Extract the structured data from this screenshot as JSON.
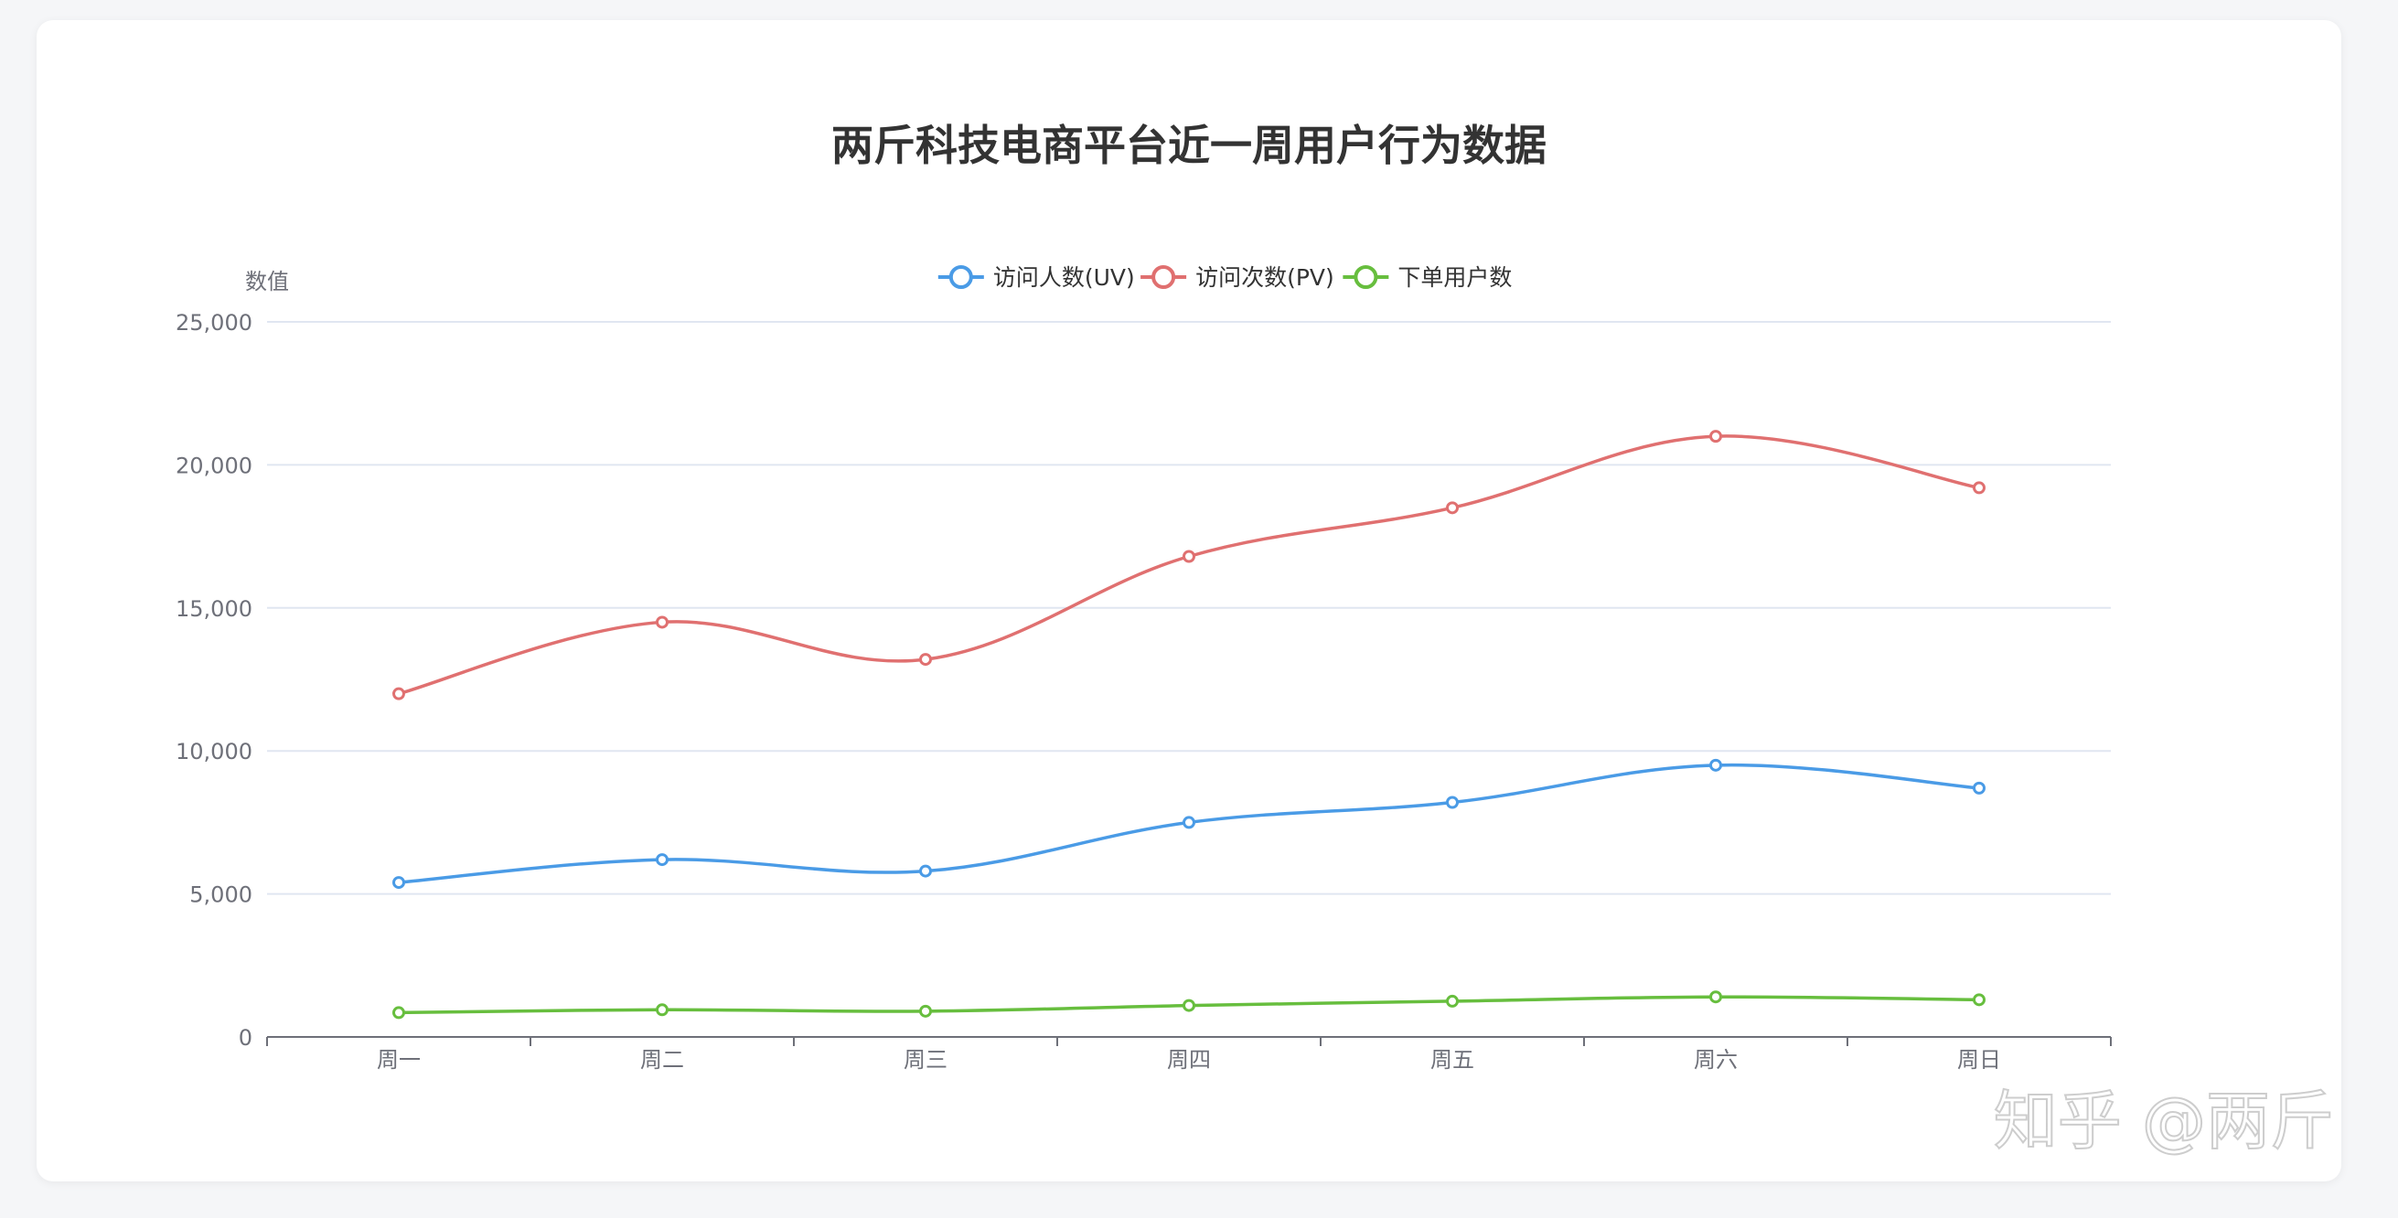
{
  "watermark": "知乎 @两斤",
  "chart_data": {
    "type": "line",
    "title": "两斤科技电商平台近一周用户行为数据",
    "ylabel": "数值",
    "xlabel": "",
    "ylim": [
      0,
      25000
    ],
    "yticks": [
      0,
      5000,
      10000,
      15000,
      20000,
      25000
    ],
    "ytick_labels": [
      "0",
      "5,000",
      "10,000",
      "15,000",
      "20,000",
      "25,000"
    ],
    "categories": [
      "周一",
      "周二",
      "周三",
      "周四",
      "周五",
      "周六",
      "周日"
    ],
    "smooth": true,
    "grid": true,
    "legend_position": "top-center",
    "series": [
      {
        "name": "访问人数(UV)",
        "color": "#4a9be6",
        "values": [
          5400,
          6200,
          5800,
          7500,
          8200,
          9500,
          8700
        ]
      },
      {
        "name": "访问次数(PV)",
        "color": "#e07070",
        "values": [
          12000,
          14500,
          13200,
          16800,
          18500,
          21000,
          19200
        ]
      },
      {
        "name": "下单用户数",
        "color": "#67be3e",
        "values": [
          850,
          950,
          900,
          1100,
          1250,
          1400,
          1300
        ]
      }
    ]
  }
}
